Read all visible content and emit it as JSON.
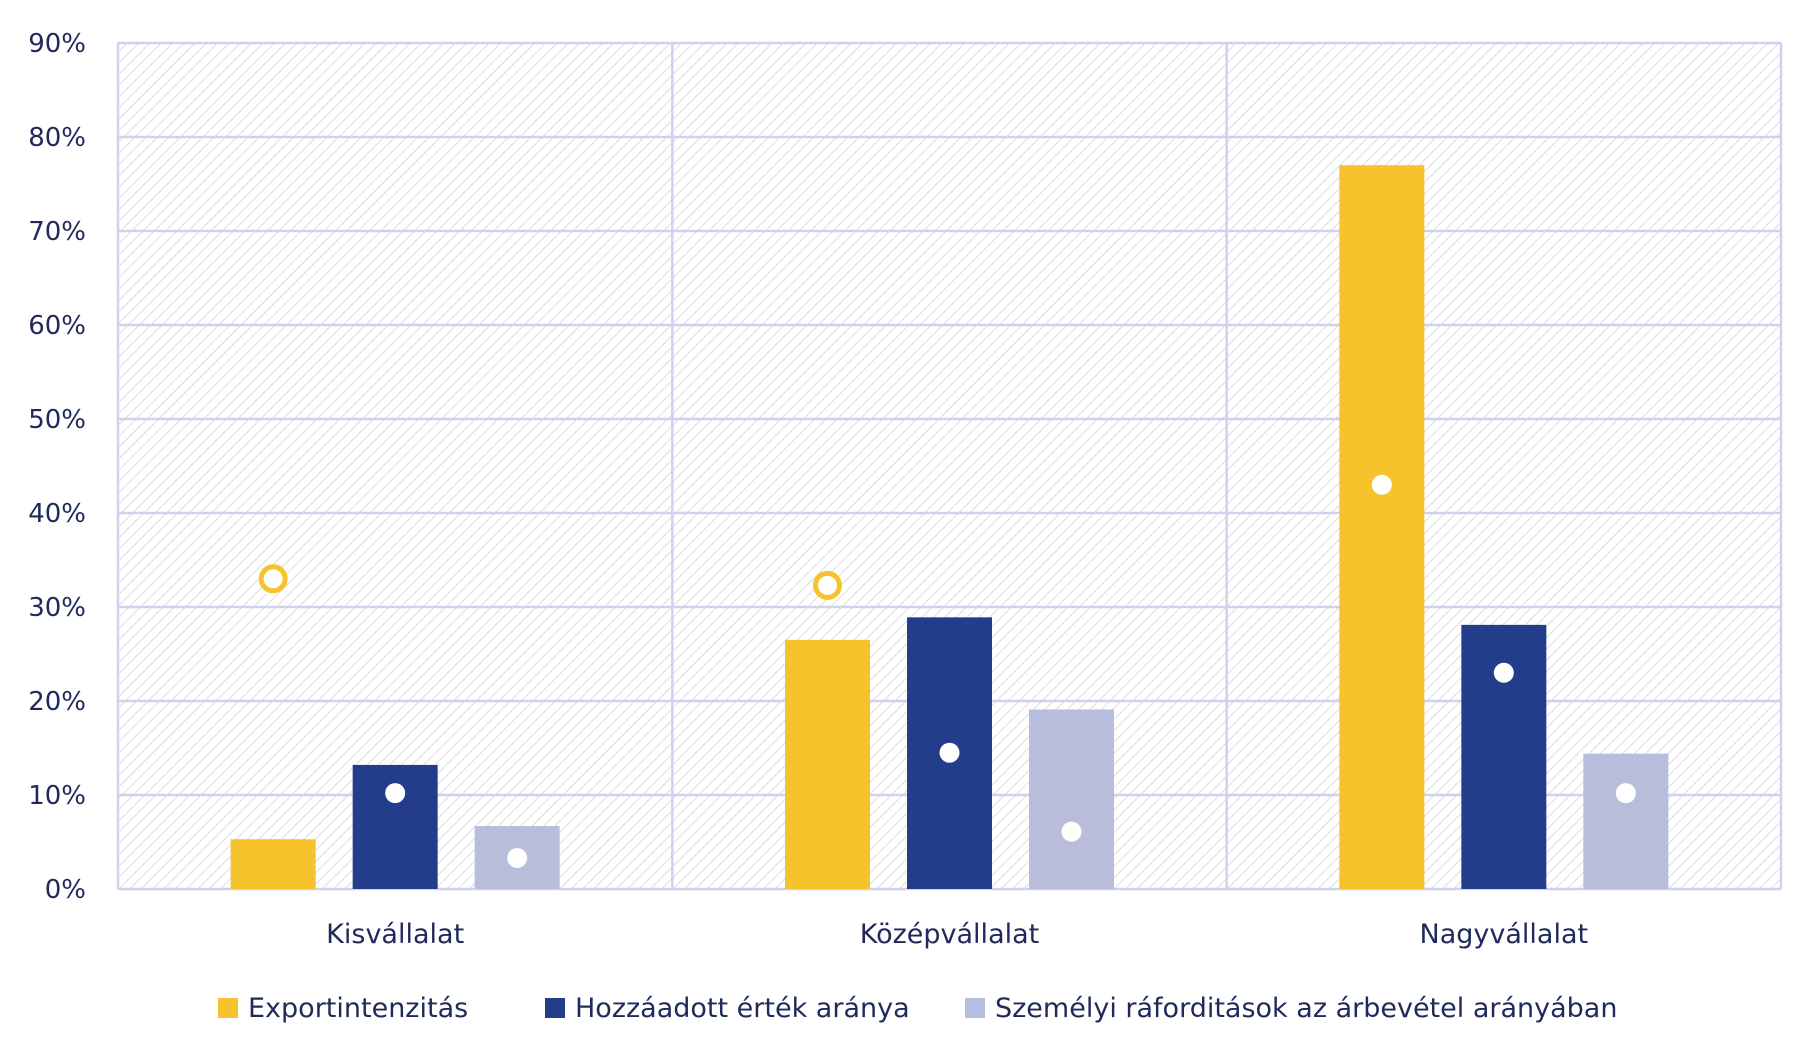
{
  "chart_data": {
    "type": "bar",
    "title": "",
    "xlabel": "",
    "ylabel": "",
    "ylim": [
      0,
      90
    ],
    "y_ticks": [
      "0%",
      "10%",
      "20%",
      "30%",
      "40%",
      "50%",
      "60%",
      "70%",
      "80%",
      "90%"
    ],
    "categories": [
      "Kisvállalat",
      "Középvállalat",
      "Nagyvállalat"
    ],
    "series": [
      {
        "name": "Exportintenzitás",
        "color": "#f6c32c",
        "values": [
          5.3,
          26.5,
          77.0
        ],
        "markers": [
          33.0,
          32.3,
          43.0
        ],
        "marker_style": [
          "ring",
          "ring",
          "dot"
        ]
      },
      {
        "name": "Hozzáadott érték aránya",
        "color": "#233d8b",
        "values": [
          13.2,
          28.9,
          28.1
        ],
        "markers": [
          10.2,
          14.5,
          23.0
        ],
        "marker_style": [
          "dot",
          "dot",
          "dot"
        ]
      },
      {
        "name": "Személyi ráforditások az árbevétel arányában",
        "color": "#b9bddc",
        "values": [
          6.7,
          19.1,
          14.4
        ],
        "markers": [
          3.3,
          6.1,
          10.2
        ],
        "marker_style": [
          "dot",
          "dot",
          "dot"
        ]
      }
    ],
    "grid": true,
    "legend": "bottom"
  }
}
